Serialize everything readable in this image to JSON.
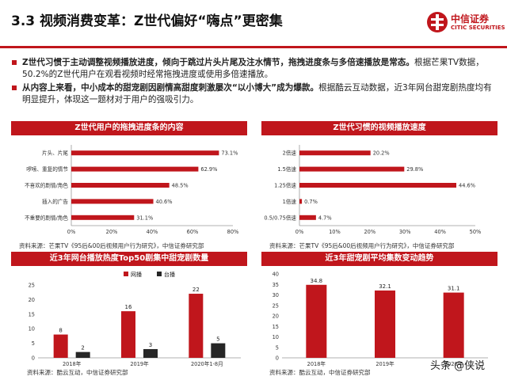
{
  "page": {
    "title": "3.3 视频消费变革：Z世代偏好“嗨点”更密集",
    "logo_cn": "中信证券",
    "logo_en": "CITIC SECURITIES",
    "watermark": "头条 @侠说"
  },
  "bullets": [
    {
      "bold": "Z世代习惯于主动调整视频播放进度，倾向于跳过片头片尾及注水情节，拖拽进度条与多倍速播放是常态。",
      "text": "根据芒果TV数据，50.2%的Z世代用户在观看视频时经常拖拽进度或使用多倍速播放。"
    },
    {
      "bold": "从内容上来看，中小成本的甜宠剧因剧情高甜度刺激屡次“以小博大”成为爆款。",
      "text": "根据酷云互动数据，近3年网台甜宠剧热度均有明显提升，体现这一题材对于用户的强吸引力。"
    }
  ],
  "panels": {
    "drag": {
      "title": "Z世代用户的拖拽进度条的内容",
      "source": "资料来源：芒果TV《95后&00后视频用户行为研究》，中信证券研究部"
    },
    "speed": {
      "title": "Z世代习惯的视频播放速度",
      "source": "资料来源：芒果TV《95后&00后视频用户行为研究》，中信证券研究部"
    },
    "top50": {
      "title": "近3年网台播放热度Top50剧集中甜宠剧数量",
      "source": "资料来源：酷云互动，中信证券研究部"
    },
    "episodes": {
      "title": "近3年甜宠剧平均集数变动趋势",
      "source": "资料来源：酷云互动，中信证券研究部"
    }
  },
  "colors": {
    "accent": "#c0161c",
    "secondary": "#262626"
  },
  "chart_data": [
    {
      "id": "drag",
      "type": "bar",
      "orientation": "horizontal",
      "categories": [
        "片头、片尾",
        "啰嗦、重复的情节",
        "不喜欢的剧情/角色",
        "插入的广告",
        "不重要的剧情/角色"
      ],
      "values": [
        73.1,
        62.9,
        48.5,
        40.6,
        31.1
      ],
      "value_labels": [
        "73.1%",
        "62.9%",
        "48.5%",
        "40.6%",
        "31.1%"
      ],
      "xlim": [
        0,
        80
      ],
      "ticks": [
        "0%",
        "20%",
        "40%",
        "60%",
        "80%"
      ],
      "grid": false
    },
    {
      "id": "speed",
      "type": "bar",
      "orientation": "horizontal",
      "categories": [
        "2倍速",
        "1.5倍速",
        "1.25倍速",
        "1倍速",
        "0.5/0.75倍速"
      ],
      "values": [
        20.2,
        29.8,
        44.6,
        0.7,
        4.7
      ],
      "value_labels": [
        "20.2%",
        "29.8%",
        "44.6%",
        "0.7%",
        "4.7%"
      ],
      "xlim": [
        0,
        50
      ],
      "ticks": [
        "0%",
        "10%",
        "20%",
        "30%",
        "40%",
        "50%"
      ],
      "grid": false
    },
    {
      "id": "top50",
      "type": "bar",
      "orientation": "vertical",
      "categories": [
        "2018年",
        "2019年",
        "2020年1-8月"
      ],
      "series": [
        {
          "name": "网播",
          "values": [
            8,
            16,
            22
          ]
        },
        {
          "name": "台播",
          "values": [
            2,
            3,
            5
          ]
        }
      ],
      "ylim": [
        0,
        25
      ],
      "ticks": [
        "0",
        "5",
        "10",
        "15",
        "20",
        "25"
      ],
      "legend": "top-left",
      "grid": false
    },
    {
      "id": "episodes",
      "type": "bar",
      "orientation": "vertical",
      "categories": [
        "2018年",
        "2019年",
        "2020年"
      ],
      "values": [
        34.8,
        32.1,
        31.1
      ],
      "ylim": [
        0,
        40
      ],
      "ticks": [
        "0",
        "5",
        "10",
        "15",
        "20",
        "25",
        "30",
        "35",
        "40"
      ],
      "grid": false
    }
  ]
}
